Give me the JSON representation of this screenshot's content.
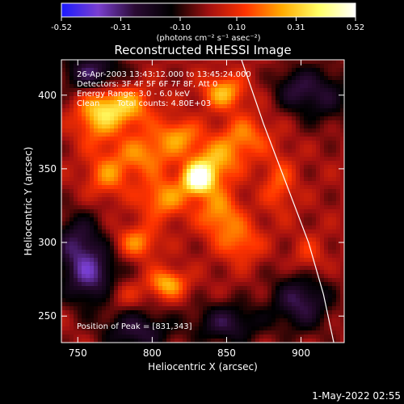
{
  "chart_data": {
    "type": "heatmap",
    "title": "Reconstructed RHESSI Image",
    "xlabel": "Heliocentric X (arcsec)",
    "ylabel": "Heliocentric Y (arcsec)",
    "xlim": [
      739,
      929
    ],
    "ylim": [
      232,
      424
    ],
    "x_ticks": [
      750,
      800,
      850,
      900
    ],
    "y_ticks": [
      250,
      300,
      350,
      400
    ],
    "colorbar": {
      "range": [
        -0.52,
        0.52
      ],
      "ticks": [
        "-0.52",
        "-0.31",
        "-0.10",
        "0.10",
        "0.31",
        "0.52"
      ],
      "unit_label": "(photons cm⁻² s⁻¹ asec⁻²)",
      "colormap": [
        "#1a1aff",
        "#7a3fd0",
        "#2a0a33",
        "#000000",
        "#a01010",
        "#ff3300",
        "#ffaa00",
        "#ffff66",
        "#ffffff"
      ]
    },
    "annotations": [
      "26-Apr-2003 13:43:12.000 to 13:45:24.000",
      "Detectors: 3F 4F 5F 6F 7F 8F, Att 0",
      "Energy Range: 3.0 - 6.0 keV",
      "Clean",
      "Total counts: 4.80E+03"
    ],
    "peak_text": "Position of Peak = [831,343]",
    "peak": {
      "x": 831,
      "y": 343,
      "value": 0.52
    },
    "limb_points": [
      [
        860,
        424
      ],
      [
        875,
        380
      ],
      [
        890,
        340
      ],
      [
        905,
        300
      ],
      [
        915,
        265
      ],
      [
        922,
        232
      ]
    ],
    "sources": [
      {
        "x": 831,
        "y": 343,
        "amp": 0.52,
        "sx": 7,
        "sy": 7
      },
      {
        "x": 842,
        "y": 355,
        "amp": 0.26,
        "sx": 12,
        "sy": 10
      },
      {
        "x": 780,
        "y": 392,
        "amp": 0.3,
        "sx": 14,
        "sy": 10
      },
      {
        "x": 762,
        "y": 385,
        "amp": 0.22,
        "sx": 10,
        "sy": 14
      },
      {
        "x": 848,
        "y": 402,
        "amp": 0.28,
        "sx": 10,
        "sy": 8
      },
      {
        "x": 818,
        "y": 373,
        "amp": 0.22,
        "sx": 10,
        "sy": 8
      },
      {
        "x": 795,
        "y": 360,
        "amp": 0.22,
        "sx": 14,
        "sy": 10
      },
      {
        "x": 862,
        "y": 372,
        "amp": 0.2,
        "sx": 12,
        "sy": 10
      },
      {
        "x": 808,
        "y": 330,
        "amp": 0.24,
        "sx": 12,
        "sy": 10
      },
      {
        "x": 790,
        "y": 300,
        "amp": 0.22,
        "sx": 10,
        "sy": 8
      },
      {
        "x": 845,
        "y": 320,
        "amp": 0.24,
        "sx": 10,
        "sy": 12
      },
      {
        "x": 860,
        "y": 300,
        "amp": 0.18,
        "sx": 10,
        "sy": 10
      },
      {
        "x": 810,
        "y": 272,
        "amp": 0.28,
        "sx": 9,
        "sy": 7
      },
      {
        "x": 778,
        "y": 265,
        "amp": 0.14,
        "sx": 10,
        "sy": 8
      },
      {
        "x": 885,
        "y": 340,
        "amp": 0.16,
        "sx": 8,
        "sy": 14
      },
      {
        "x": 770,
        "y": 345,
        "amp": 0.2,
        "sx": 10,
        "sy": 10
      },
      {
        "x": 905,
        "y": 290,
        "amp": 0.12,
        "sx": 8,
        "sy": 10
      },
      {
        "x": 760,
        "y": 275,
        "amp": -0.3,
        "sx": 14,
        "sy": 14
      },
      {
        "x": 750,
        "y": 300,
        "amp": -0.25,
        "sx": 12,
        "sy": 14
      },
      {
        "x": 760,
        "y": 415,
        "amp": -0.3,
        "sx": 14,
        "sy": 10
      },
      {
        "x": 790,
        "y": 240,
        "amp": -0.25,
        "sx": 16,
        "sy": 10
      },
      {
        "x": 850,
        "y": 245,
        "amp": -0.25,
        "sx": 16,
        "sy": 10
      },
      {
        "x": 900,
        "y": 260,
        "amp": -0.28,
        "sx": 14,
        "sy": 14
      },
      {
        "x": 915,
        "y": 400,
        "amp": -0.2,
        "sx": 14,
        "sy": 14
      },
      {
        "x": 895,
        "y": 405,
        "amp": -0.18,
        "sx": 10,
        "sy": 10
      }
    ]
  },
  "footer": {
    "date_stamp": "1-May-2022 02:55"
  }
}
